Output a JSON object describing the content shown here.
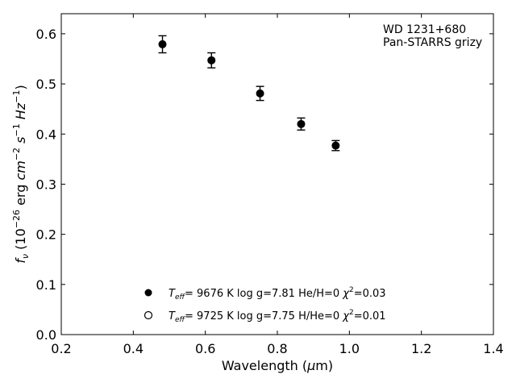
{
  "chart_data": {
    "type": "scatter",
    "annotation": [
      "WD 1231+680",
      "Pan-STARRS grizy"
    ],
    "xlabel": "Wavelength (μm)",
    "ylabel": "f_ν (10^-26 erg cm^-2 s^-1 Hz^-1)",
    "xlim": [
      0.2,
      1.4
    ],
    "ylim": [
      0.0,
      0.64
    ],
    "xticks": [
      "0.2",
      "0.4",
      "0.6",
      "0.8",
      "1.0",
      "1.2",
      "1.4"
    ],
    "yticks": [
      "0.0",
      "0.1",
      "0.2",
      "0.3",
      "0.4",
      "0.5",
      "0.6"
    ],
    "grid": false,
    "legend_position": "bottom-center",
    "series": [
      {
        "marker": "filled-circle",
        "x": [
          0.481,
          0.617,
          0.752,
          0.866,
          0.962
        ],
        "y": [
          0.579,
          0.547,
          0.481,
          0.42,
          0.377
        ],
        "yerr": [
          0.017,
          0.015,
          0.014,
          0.012,
          0.01
        ]
      }
    ],
    "legend": [
      {
        "marker": "filled-circle",
        "teff": "9676 K",
        "params": "log g=7.81  He/H=0",
        "chi2": "=0.03"
      },
      {
        "marker": "open-circle",
        "teff": "9725 K",
        "params": "log g=7.75  H/He=0",
        "chi2": "=0.01"
      }
    ]
  }
}
